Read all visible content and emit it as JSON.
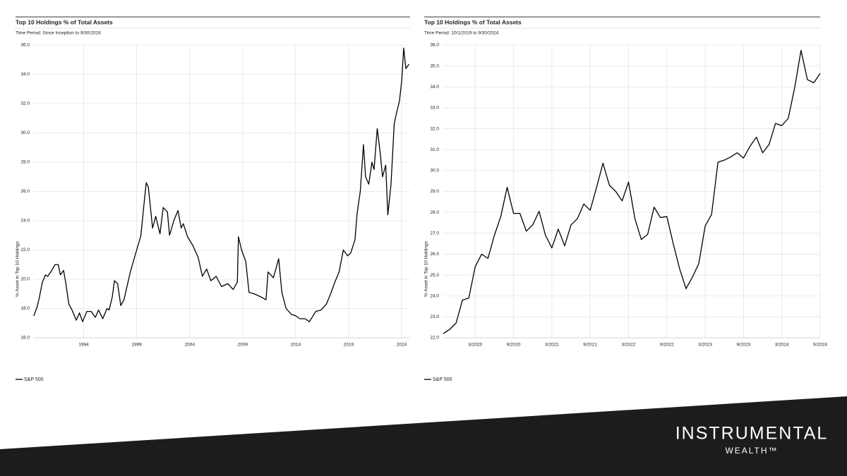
{
  "chart_data": [
    {
      "type": "line",
      "title": "Top 10 Holdings % of Total Assets",
      "subtitle": "Time Period: Since Inception to 9/30/2024",
      "y_label": "% Asset in Top 10 Holdings",
      "x": [
        1989.3,
        1989.6,
        1989.8,
        1990.1,
        1990.4,
        1990.6,
        1990.9,
        1991.3,
        1991.6,
        1991.8,
        1992.1,
        1992.3,
        1992.6,
        1992.9,
        1993.3,
        1993.6,
        1993.9,
        1994.3,
        1994.7,
        1995.1,
        1995.4,
        1995.8,
        1996.2,
        1996.4,
        1996.7,
        1996.9,
        1997.2,
        1997.5,
        1997.8,
        1998.4,
        1998.8,
        1999.4,
        1999.7,
        1999.9,
        2000.1,
        2000.5,
        2000.8,
        2001.2,
        2001.5,
        2001.9,
        2002.1,
        2002.5,
        2002.9,
        2003.2,
        2003.4,
        2003.8,
        2004.3,
        2004.8,
        2005.2,
        2005.6,
        2006.0,
        2006.5,
        2007.0,
        2007.6,
        2008.1,
        2008.5,
        2008.6,
        2008.9,
        2009.3,
        2009.6,
        2010.1,
        2010.7,
        2011.2,
        2011.4,
        2011.9,
        2012.4,
        2012.7,
        2013.1,
        2013.6,
        2014.0,
        2014.4,
        2014.9,
        2015.3,
        2015.9,
        2016.4,
        2016.9,
        2017.3,
        2017.7,
        2018.1,
        2018.5,
        2018.9,
        2019.2,
        2019.6,
        2019.8,
        2020.1,
        2020.4,
        2020.6,
        2020.9,
        2021.2,
        2021.4,
        2021.7,
        2022.0,
        2022.2,
        2022.5,
        2022.7,
        2023.0,
        2023.3,
        2023.5,
        2023.8,
        2024.0,
        2024.2,
        2024.4,
        2024.7
      ],
      "series": [
        {
          "name": "S&P 500",
          "color": "#000000",
          "values": [
            17.5,
            18.1,
            18.7,
            19.8,
            20.3,
            20.2,
            20.5,
            21.0,
            21.0,
            20.3,
            20.6,
            19.8,
            18.3,
            17.9,
            17.2,
            17.7,
            17.1,
            17.8,
            17.8,
            17.4,
            17.9,
            17.3,
            18.0,
            17.9,
            18.8,
            19.9,
            19.7,
            18.2,
            18.6,
            20.5,
            21.5,
            23.0,
            25.2,
            26.6,
            26.3,
            23.5,
            24.3,
            23.1,
            24.9,
            24.6,
            23.0,
            24.0,
            24.7,
            23.5,
            23.8,
            22.9,
            22.3,
            21.5,
            20.2,
            20.7,
            19.9,
            20.2,
            19.5,
            19.7,
            19.3,
            19.8,
            22.9,
            22.0,
            21.2,
            19.1,
            19.0,
            18.8,
            18.6,
            20.5,
            20.1,
            21.4,
            19.1,
            18.0,
            17.6,
            17.5,
            17.3,
            17.3,
            17.1,
            17.8,
            17.9,
            18.3,
            19.0,
            19.8,
            20.5,
            22.0,
            21.6,
            21.8,
            22.7,
            24.5,
            26.0,
            29.2,
            27.0,
            26.5,
            28.0,
            27.5,
            30.3,
            28.5,
            27.0,
            27.8,
            24.4,
            26.5,
            30.6,
            31.3,
            32.2,
            33.5,
            35.8,
            34.4,
            34.7
          ]
        }
      ],
      "xlim": [
        1989.3,
        2024.8
      ],
      "xticks": [
        1994,
        1999,
        2004,
        2009,
        2014,
        2019,
        2024
      ],
      "ylim": [
        16,
        36
      ],
      "yticks": [
        {
          "value": 16,
          "label": "16.0"
        },
        {
          "value": 18,
          "label": "18.0"
        },
        {
          "value": 20,
          "label": "20.0"
        },
        {
          "value": 22,
          "label": "22.0"
        },
        {
          "value": 24,
          "label": "24.0"
        },
        {
          "value": 26,
          "label": "26.0"
        },
        {
          "value": 28,
          "label": "28.0"
        },
        {
          "value": 30,
          "label": "30.0"
        },
        {
          "value": 32,
          "label": "32.0"
        },
        {
          "value": 34,
          "label": "34.0"
        },
        {
          "value": 36,
          "label": "36.0"
        }
      ],
      "grid": true,
      "legend": "bottom-left"
    },
    {
      "type": "line",
      "title": "Top 10 Holdings % of Total Assets",
      "subtitle": "Time Period: 10/1/2019 to 9/30/2024",
      "y_label": "% Asset in Top 10 Holdings",
      "categories": [
        null,
        null,
        null,
        null,
        null,
        "3/2020",
        null,
        null,
        null,
        null,
        null,
        "9/2020",
        null,
        null,
        null,
        null,
        null,
        "3/2021",
        null,
        null,
        null,
        null,
        null,
        "9/2021",
        null,
        null,
        null,
        null,
        null,
        "3/2022",
        null,
        null,
        null,
        null,
        null,
        "9/2022",
        null,
        null,
        null,
        null,
        null,
        "3/2023",
        null,
        null,
        null,
        null,
        null,
        "9/2023",
        null,
        null,
        null,
        null,
        null,
        "3/2024",
        null,
        null,
        null,
        null,
        null,
        "9/2024"
      ],
      "series": [
        {
          "name": "S&P 500",
          "color": "#000000",
          "values": [
            22.2,
            22.4,
            22.7,
            23.8,
            23.9,
            25.4,
            26.0,
            25.8,
            26.9,
            27.8,
            29.2,
            27.95,
            27.95,
            27.1,
            27.4,
            28.05,
            26.9,
            26.3,
            27.2,
            26.4,
            27.4,
            27.7,
            28.4,
            28.1,
            29.2,
            30.35,
            29.3,
            29.0,
            28.55,
            29.45,
            27.7,
            26.7,
            26.95,
            28.25,
            27.75,
            27.8,
            26.5,
            25.3,
            24.35,
            24.9,
            25.55,
            27.35,
            27.9,
            30.4,
            30.5,
            30.65,
            30.85,
            30.6,
            31.15,
            31.6,
            30.85,
            31.25,
            32.25,
            32.15,
            32.5,
            33.95,
            35.75,
            34.35,
            34.2,
            34.65
          ]
        }
      ],
      "ylim": [
        22,
        36
      ],
      "yticks": [
        {
          "value": 22,
          "label": "22.0"
        },
        {
          "value": 23,
          "label": "23.0"
        },
        {
          "value": 24,
          "label": "24.0"
        },
        {
          "value": 25,
          "label": "25.0"
        },
        {
          "value": 26,
          "label": "26.0"
        },
        {
          "value": 27,
          "label": "27.0"
        },
        {
          "value": 28,
          "label": "28.0"
        },
        {
          "value": 29,
          "label": "29.0"
        },
        {
          "value": 30,
          "label": "30.0"
        },
        {
          "value": 31,
          "label": "31.0"
        },
        {
          "value": 32,
          "label": "32.0"
        },
        {
          "value": 33,
          "label": "33.0"
        },
        {
          "value": 34,
          "label": "34.0"
        },
        {
          "value": 35,
          "label": "35.0"
        },
        {
          "value": 36,
          "label": "36.0"
        }
      ],
      "grid": true,
      "legend": "bottom-left"
    }
  ],
  "branding": {
    "name": "INSTRUMENTAL",
    "sub": "WEALTH™"
  }
}
